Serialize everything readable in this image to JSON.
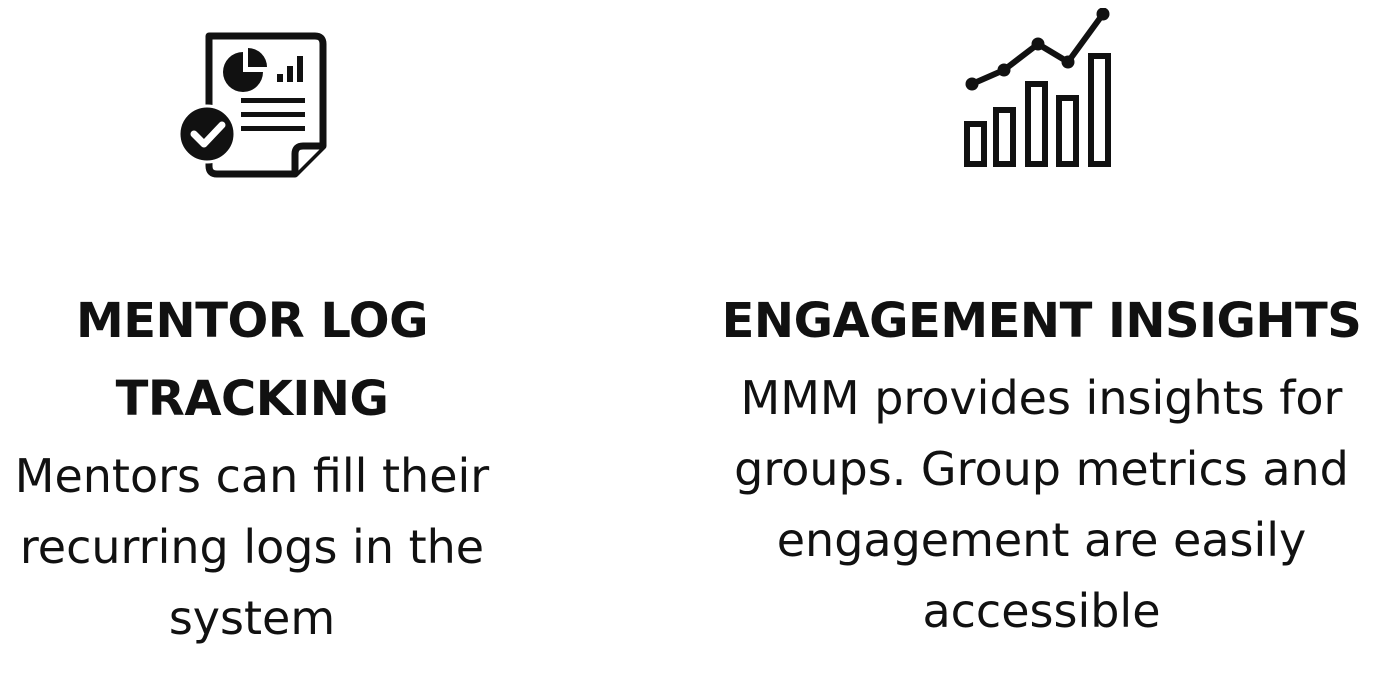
{
  "features": [
    {
      "icon": "report-check-icon",
      "title": "MENTOR LOG TRACKING",
      "description": "Mentors can fill their recurring logs in the system"
    },
    {
      "icon": "growth-chart-icon",
      "title": "ENGAGEMENT INSIGHTS",
      "description": "MMM provides insights for groups. Group metrics and engagement are easily accessible"
    }
  ],
  "colors": {
    "text": "#111111",
    "icon": "#111111",
    "background": "#ffffff"
  }
}
